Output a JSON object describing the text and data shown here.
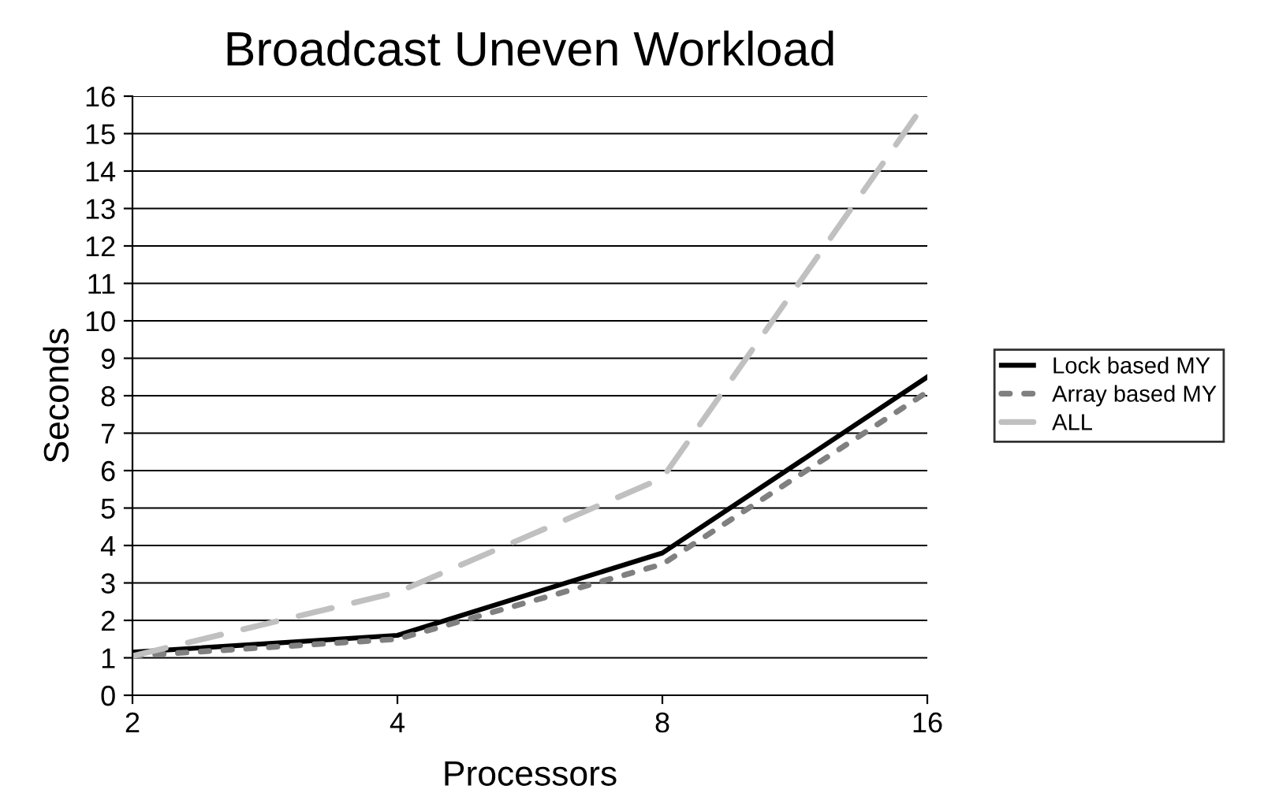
{
  "chart_data": {
    "type": "line",
    "title": "Broadcast Uneven Workload",
    "xlabel": "Processors",
    "ylabel": "Seconds",
    "categories": [
      "2",
      "4",
      "8",
      "16"
    ],
    "series": [
      {
        "name": "Lock based MY",
        "color": "#000000",
        "line_style": "solid",
        "values": [
          1.15,
          1.6,
          3.8,
          8.5
        ]
      },
      {
        "name": "Array based MY",
        "color": "#808080",
        "line_style": "dotted",
        "values": [
          1.05,
          1.5,
          3.5,
          8.1
        ]
      },
      {
        "name": "ALL",
        "color": "#c0c0c0",
        "line_style": "dashed",
        "values": [
          1.05,
          2.75,
          5.8,
          15.9
        ]
      }
    ],
    "ylim": [
      0,
      16
    ],
    "yticks": [
      0,
      1,
      2,
      3,
      4,
      5,
      6,
      7,
      8,
      9,
      10,
      11,
      12,
      13,
      14,
      15,
      16
    ],
    "grid": "y",
    "legend": "right",
    "marker": "none"
  }
}
